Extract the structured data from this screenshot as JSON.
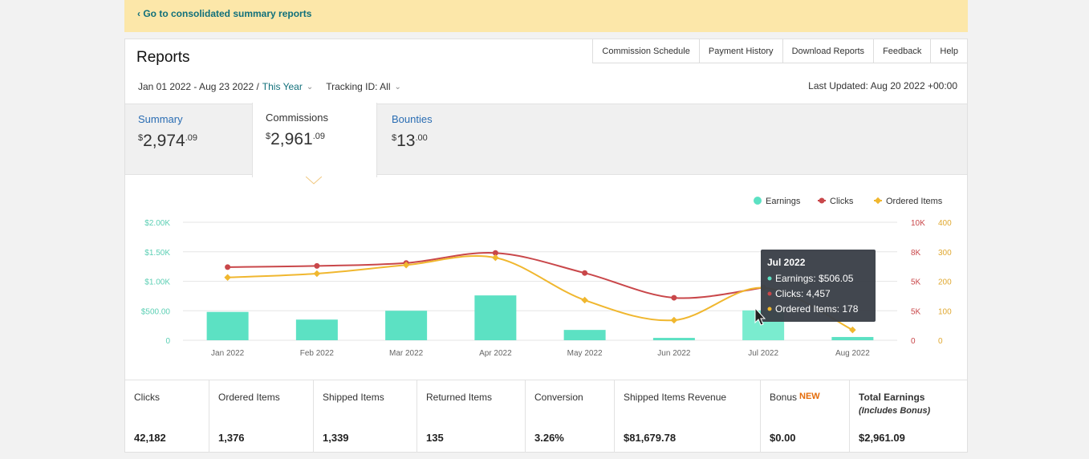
{
  "banner": {
    "link": "‹ Go to consolidated summary reports"
  },
  "header": {
    "title": "Reports"
  },
  "topnav": [
    "Commission Schedule",
    "Payment History",
    "Download Reports",
    "Feedback",
    "Help"
  ],
  "filters": {
    "date_range": "Jan 01 2022 - Aug 23 2022 /",
    "period": "This Year",
    "tracking": "Tracking ID: All"
  },
  "last_updated": "Last Updated: Aug 20 2022 +00:00",
  "tabs": {
    "summary": {
      "label": "Summary",
      "symbol": "$",
      "whole": "2,974",
      "cents": ".09"
    },
    "commissions": {
      "label": "Commissions",
      "symbol": "$",
      "whole": "2,961",
      "cents": ".09"
    },
    "bounties": {
      "label": "Bounties",
      "symbol": "$",
      "whole": "13",
      "cents": ".00"
    }
  },
  "chart_data": {
    "type": "bar",
    "categories": [
      "Jan 2022",
      "Feb 2022",
      "Mar 2022",
      "Apr 2022",
      "May 2022",
      "Jun 2022",
      "Jul 2022",
      "Aug 2022"
    ],
    "series": [
      {
        "name": "Earnings",
        "type": "bar",
        "axis": "left",
        "color": "#5ce1c3",
        "values": [
          480,
          350,
          500,
          760,
          175,
          40,
          506.05,
          55
        ]
      },
      {
        "name": "Clicks",
        "type": "line",
        "axis": "right-1",
        "color": "#c9474a",
        "values": [
          6200,
          6300,
          6550,
          7400,
          5700,
          3600,
          4457,
          null
        ]
      },
      {
        "name": "Ordered Items",
        "type": "line",
        "axis": "right-2",
        "color": "#f0b72f",
        "values": [
          213,
          226,
          255,
          280,
          136,
          68,
          178,
          35
        ]
      }
    ],
    "axes": {
      "left": {
        "ticks": [
          "0",
          "$500.00",
          "$1.00K",
          "$1.50K",
          "$2.00K"
        ],
        "range": [
          0,
          2000
        ]
      },
      "right_1": {
        "ticks": [
          "0",
          "5K",
          "5K",
          "8K",
          "10K"
        ],
        "range": [
          0,
          10000
        ]
      },
      "right_2": {
        "ticks": [
          "0",
          "100",
          "200",
          "300",
          "400"
        ],
        "range": [
          0,
          400
        ]
      }
    },
    "legend": [
      "Earnings",
      "Clicks",
      "Ordered Items"
    ],
    "legend_position": "top-right",
    "tooltip": {
      "title": "Jul 2022",
      "lines": [
        "Earnings: $506.05",
        "Clicks: 4,457",
        "Ordered Items: 178"
      ]
    }
  },
  "stats": [
    {
      "label": "Clicks",
      "value": "42,182"
    },
    {
      "label": "Ordered Items",
      "value": "1,376"
    },
    {
      "label": "Shipped Items",
      "value": "1,339"
    },
    {
      "label": "Returned Items",
      "value": "135"
    },
    {
      "label": "Conversion",
      "value": "3.26%"
    },
    {
      "label": "Shipped Items Revenue",
      "value": "$81,679.78"
    },
    {
      "label": "Bonus",
      "badge": "NEW",
      "value": "$0.00"
    },
    {
      "label": "Total Earnings",
      "sub": "(Includes Bonus)",
      "value": "$2,961.09"
    }
  ]
}
